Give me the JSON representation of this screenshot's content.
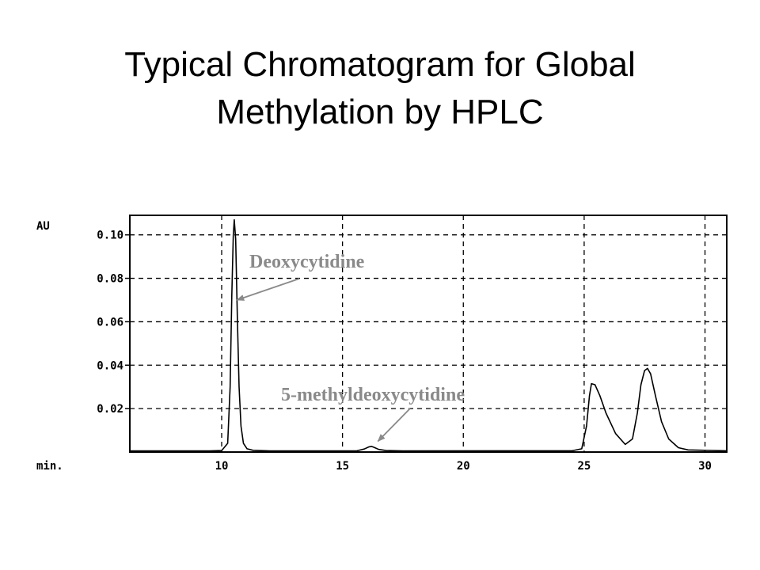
{
  "title": {
    "line1": "Typical Chromatogram for Global",
    "line2": "Methylation by HPLC"
  },
  "chart_data": {
    "type": "line",
    "ylabel": "AU",
    "xlabel": "min.",
    "xlim": [
      6.2,
      30.9
    ],
    "ylim": [
      0,
      0.109
    ],
    "xticks": [
      10,
      15,
      20,
      25,
      30
    ],
    "xtick_labels": [
      "10",
      "15",
      "20",
      "25",
      "30"
    ],
    "yticks": [
      0.02,
      0.04,
      0.06,
      0.08,
      0.1
    ],
    "ytick_labels": [
      "0.02",
      "0.04",
      "0.06",
      "0.08",
      "0.10"
    ],
    "grid": true,
    "series": [
      {
        "x": [
          6.2,
          9.5,
          10.0,
          10.25,
          10.35,
          10.42,
          10.48,
          10.52,
          10.58,
          10.65,
          10.72,
          10.8,
          10.9,
          11.05,
          11.3,
          12.0,
          15.6,
          15.9,
          16.1,
          16.2,
          16.3,
          16.5,
          16.8,
          17.5,
          24.5,
          24.9,
          25.1,
          25.22,
          25.3,
          25.45,
          25.65,
          25.9,
          26.3,
          26.7,
          27.0,
          27.2,
          27.35,
          27.5,
          27.62,
          27.75,
          27.95,
          28.2,
          28.5,
          28.9,
          29.3,
          30.9
        ],
        "y": [
          0.0005,
          0.0005,
          0.0007,
          0.004,
          0.03,
          0.072,
          0.1,
          0.107,
          0.098,
          0.062,
          0.03,
          0.012,
          0.004,
          0.0015,
          0.0008,
          0.0005,
          0.0006,
          0.0014,
          0.0024,
          0.0026,
          0.0022,
          0.0012,
          0.0007,
          0.0005,
          0.0006,
          0.0015,
          0.012,
          0.026,
          0.0315,
          0.031,
          0.026,
          0.018,
          0.0085,
          0.0035,
          0.006,
          0.018,
          0.031,
          0.0375,
          0.0385,
          0.036,
          0.026,
          0.014,
          0.006,
          0.002,
          0.001,
          0.0006
        ]
      }
    ],
    "annotations": [
      {
        "text": "Deoxycytidine",
        "x": 10.5,
        "y": 0.07
      },
      {
        "text": "5-methyldeoxycytidine",
        "x": 16.4,
        "y": 0.0035
      }
    ],
    "colors": {
      "line": "#000000",
      "grid": "#000000",
      "annotation": "#8a8a8a"
    }
  }
}
